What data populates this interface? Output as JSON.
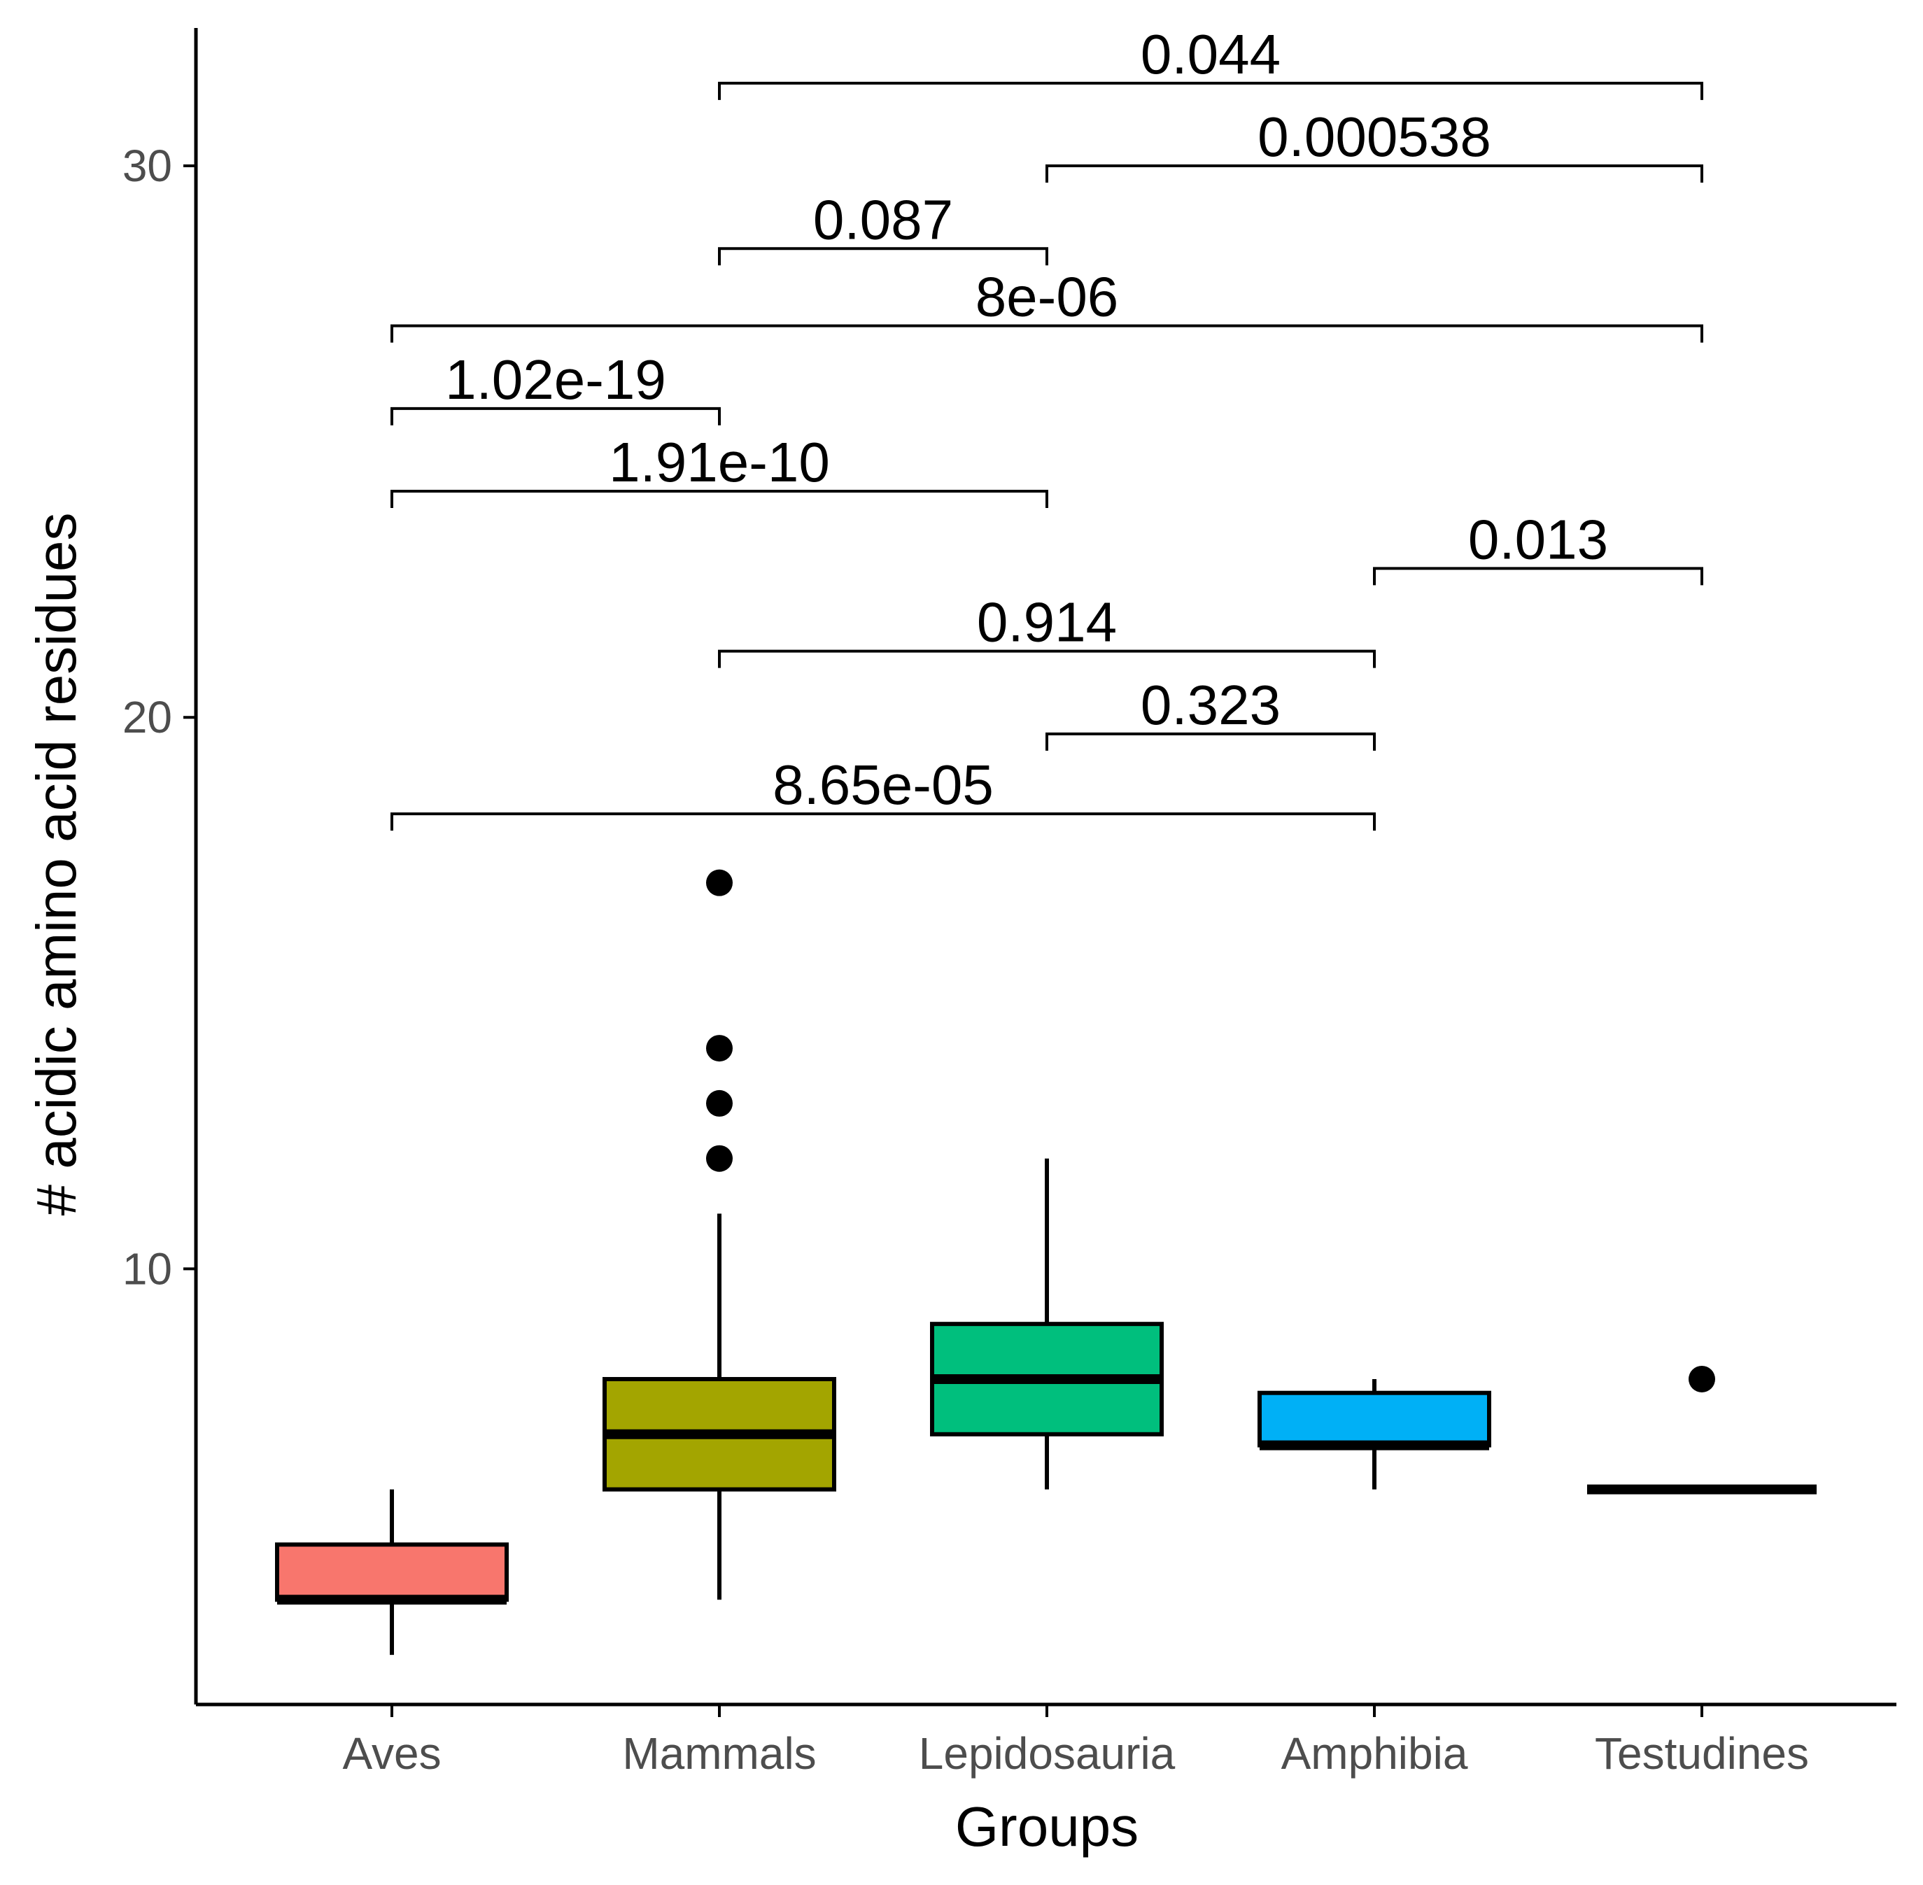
{
  "chart_data": {
    "type": "box",
    "xlabel": "Groups",
    "ylabel": "# acidic amino acid residues",
    "ylim": [
      2.1,
      32.5
    ],
    "yticks": [
      10,
      20,
      30
    ],
    "grid": false,
    "legend": "none",
    "categories": [
      "Aves",
      "Mammals",
      "Lepidosauria",
      "Amphibia",
      "Testudines"
    ],
    "boxes": [
      {
        "group": "Aves",
        "color": "#F8766D",
        "whisker_low": 3,
        "q1": 4,
        "median": 4,
        "q3": 5,
        "whisker_high": 6,
        "outliers": []
      },
      {
        "group": "Mammals",
        "color": "#A3A500",
        "whisker_low": 4,
        "q1": 6,
        "median": 7,
        "q3": 8,
        "whisker_high": 11,
        "outliers": [
          12,
          13,
          14,
          17
        ]
      },
      {
        "group": "Lepidosauria",
        "color": "#00BF7D",
        "whisker_low": 6,
        "q1": 7,
        "median": 8,
        "q3": 9,
        "whisker_high": 12,
        "outliers": []
      },
      {
        "group": "Amphibia",
        "color": "#00B0F6",
        "whisker_low": 6,
        "q1": 6.8,
        "median": 6.8,
        "q3": 7.75,
        "whisker_high": 8,
        "outliers": []
      },
      {
        "group": "Testudines",
        "color": "#E76BF3",
        "whisker_low": 6,
        "q1": 6,
        "median": 6,
        "q3": 6,
        "whisker_high": 6,
        "outliers": [
          8
        ]
      }
    ],
    "comparisons": [
      {
        "from": "Aves",
        "to": "Amphibia",
        "label": "8.65e-05",
        "y": 18.25
      },
      {
        "from": "Lepidosauria",
        "to": "Amphibia",
        "label": "0.323",
        "y": 19.7
      },
      {
        "from": "Mammals",
        "to": "Amphibia",
        "label": "0.914",
        "y": 21.2
      },
      {
        "from": "Amphibia",
        "to": "Testudines",
        "label": "0.013",
        "y": 22.7
      },
      {
        "from": "Aves",
        "to": "Lepidosauria",
        "label": "1.91e-10",
        "y": 24.1
      },
      {
        "from": "Aves",
        "to": "Mammals",
        "label": "1.02e-19",
        "y": 25.6
      },
      {
        "from": "Aves",
        "to": "Testudines",
        "label": "8e-06",
        "y": 27.1
      },
      {
        "from": "Mammals",
        "to": "Lepidosauria",
        "label": "0.087",
        "y": 28.5
      },
      {
        "from": "Lepidosauria",
        "to": "Testudines",
        "label": "0.000538",
        "y": 30.0
      },
      {
        "from": "Mammals",
        "to": "Testudines",
        "label": "0.044",
        "y": 31.5
      }
    ]
  }
}
